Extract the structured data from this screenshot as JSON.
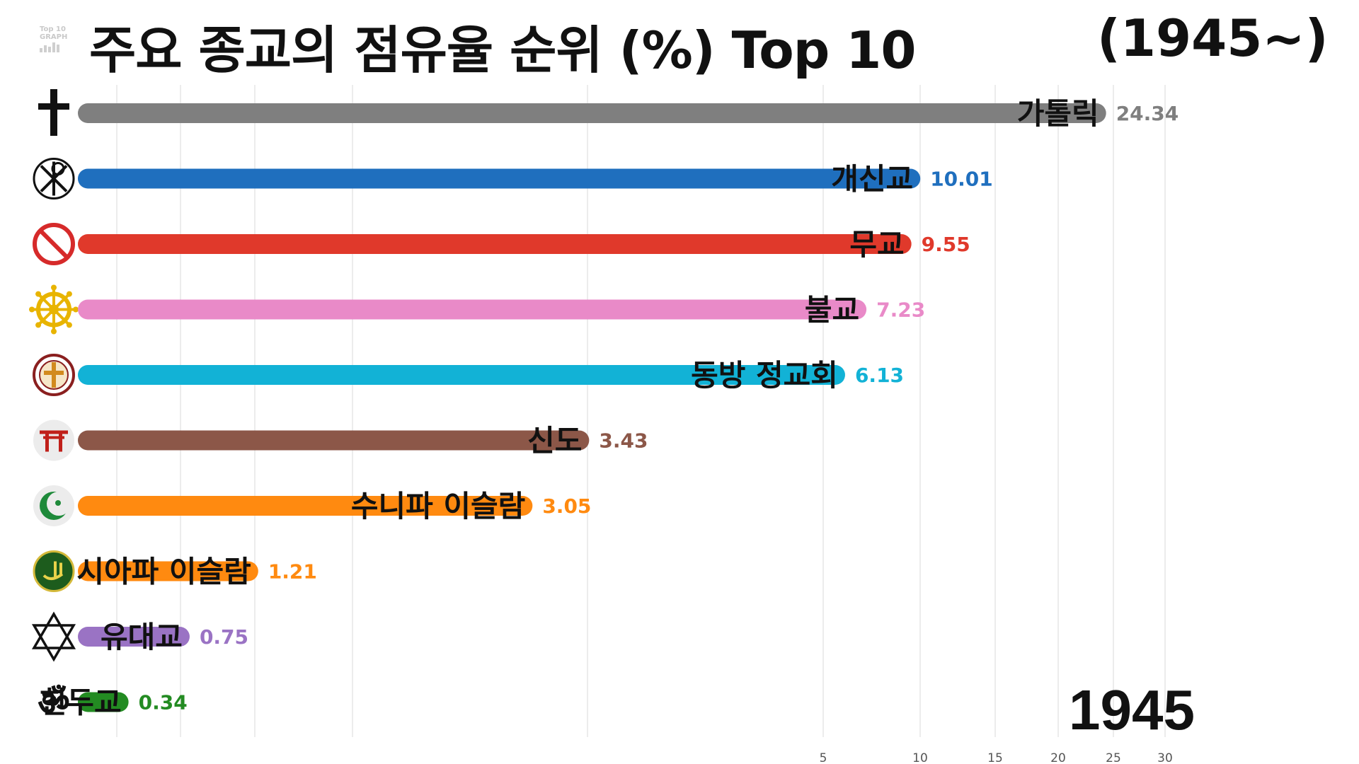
{
  "header": {
    "logo_line1": "Top 10",
    "logo_line2": "GRAPH",
    "title": "주요 종교의 점유율 순위 (%) Top 10",
    "period": "(1945~)",
    "year": "1945"
  },
  "chart_data": {
    "type": "bar",
    "orientation": "horizontal",
    "title": "주요 종교의 점유율 순위 (%) Top 10",
    "year": "1945",
    "categories": [
      "가톨릭",
      "개신교",
      "무교",
      "불교",
      "동방 정교회",
      "신도",
      "수니파 이슬람",
      "시아파 이슬람",
      "유대교",
      "힌두교"
    ],
    "values": [
      24.34,
      10.01,
      9.55,
      7.23,
      6.13,
      3.43,
      3.05,
      1.21,
      0.75,
      0.34
    ],
    "value_labels": [
      "24.34",
      "10.01",
      "9.55",
      "7.23",
      "6.13",
      "3.43",
      "3.05",
      "1.21",
      "0.75",
      "0.34"
    ],
    "colors": [
      "#7f7f7f",
      "#1f6fbe",
      "#e0392b",
      "#e98ac8",
      "#12b2d6",
      "#8c5748",
      "#ff8a10",
      "#ff8a10",
      "#9a73c4",
      "#238b22"
    ],
    "icons": [
      "latin-cross-icon",
      "chi-rho-icon",
      "no-religion-icon",
      "dharma-wheel-icon",
      "orthodox-cross-icon",
      "torii-gate-icon",
      "crescent-star-icon",
      "ali-calligraphy-icon",
      "star-of-david-icon",
      "om-icon"
    ],
    "x_ticks": [
      "5",
      "10",
      "15",
      "20",
      "25",
      "30"
    ],
    "x_tick_values": [
      5,
      10,
      15,
      20,
      25,
      30
    ],
    "xlim": [
      0,
      30
    ],
    "grid": true
  }
}
